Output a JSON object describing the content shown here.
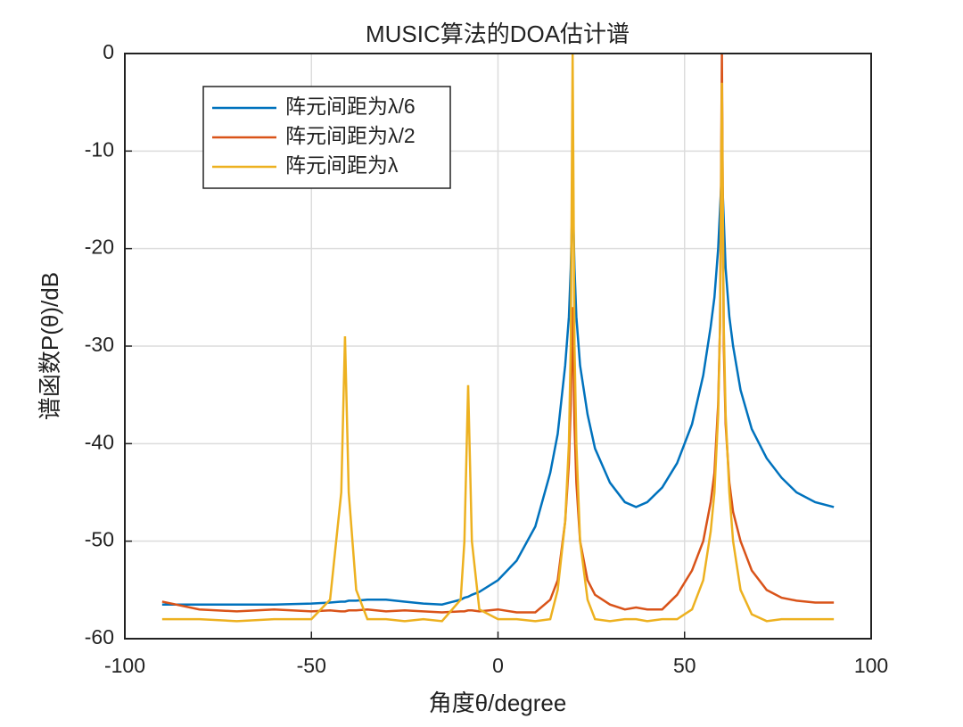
{
  "chart_data": {
    "type": "line",
    "title": "MUSIC算法的DOA估计谱",
    "xlabel": "角度θ/degree",
    "ylabel": "谱函数P(θ)/dB",
    "x": [
      -90,
      -80,
      -70,
      -60,
      -50,
      -45,
      -42,
      -41,
      -40,
      -38,
      -35,
      -30,
      -25,
      -20,
      -15,
      -10,
      -9,
      -8,
      -7,
      -5,
      0,
      5,
      10,
      14,
      16,
      18,
      19,
      19.5,
      20,
      20.5,
      21,
      22,
      24,
      26,
      30,
      34,
      37,
      40,
      44,
      48,
      52,
      55,
      57,
      58,
      59,
      59.5,
      60,
      60.5,
      61,
      62,
      63,
      65,
      68,
      72,
      76,
      80,
      85,
      90
    ],
    "series": [
      {
        "name": "阵元间距为λ/6",
        "color": "#0072BD",
        "values": [
          -56.5,
          -56.5,
          -56.5,
          -56.5,
          -56.4,
          -56.3,
          -56.2,
          -56.2,
          -56.1,
          -56.1,
          -56,
          -56,
          -56.2,
          -56.4,
          -56.5,
          -56,
          -55.8,
          -55.7,
          -55.5,
          -55.2,
          -54,
          -52,
          -48.5,
          -43,
          -39,
          -32,
          -27,
          -22,
          -14,
          -22,
          -27,
          -32,
          -37,
          -40.5,
          -44,
          -46,
          -46.5,
          -46,
          -44.5,
          -42,
          -38,
          -33,
          -28,
          -25,
          -20,
          -16,
          -12,
          -17,
          -22,
          -27,
          -30,
          -34.5,
          -38.5,
          -41.5,
          -43.5,
          -45,
          -46,
          -46.5
        ]
      },
      {
        "name": "阵元间距为λ/2",
        "color": "#D95319",
        "values": [
          -56.2,
          -57,
          -57.2,
          -57,
          -57.2,
          -57.1,
          -57.2,
          -57.2,
          -57.1,
          -57.1,
          -57,
          -57.2,
          -57.1,
          -57.2,
          -57.3,
          -57.2,
          -57.2,
          -57.1,
          -57.1,
          -57.2,
          -57,
          -57.3,
          -57.3,
          -56,
          -54,
          -48,
          -42,
          -36,
          -26,
          -38,
          -44,
          -50,
          -54,
          -55.5,
          -56.5,
          -57,
          -56.8,
          -57,
          -57,
          -55.5,
          -53,
          -50,
          -46,
          -43,
          -36,
          -28,
          0,
          -30,
          -38,
          -44,
          -47,
          -50,
          -53,
          -55,
          -55.8,
          -56.1,
          -56.3,
          -56.3
        ]
      },
      {
        "name": "阵元间距为λ",
        "color": "#EDB120",
        "values": [
          -58,
          -58,
          -58.2,
          -58,
          -58,
          -56,
          -45,
          -29,
          -45,
          -55,
          -58,
          -58,
          -58.2,
          -58,
          -58.2,
          -56,
          -50,
          -34,
          -50,
          -57,
          -58,
          -58,
          -58.2,
          -58,
          -55,
          -48,
          -40,
          -30,
          0,
          -30,
          -40,
          -50,
          -56,
          -58,
          -58.2,
          -58,
          -58,
          -58.2,
          -58,
          -58,
          -57,
          -54,
          -49,
          -45,
          -37,
          -28,
          -3,
          -28,
          -37,
          -45,
          -50,
          -55,
          -57.5,
          -58.2,
          -58,
          -58,
          -58,
          -58
        ]
      }
    ],
    "xlim": [
      -100,
      100
    ],
    "xticks": [
      -100,
      -50,
      0,
      50,
      100
    ],
    "ylim": [
      -60,
      0
    ],
    "yticks": [
      -60,
      -50,
      -40,
      -30,
      -20,
      -10,
      0
    ],
    "grid": true,
    "legend": "upper left"
  }
}
